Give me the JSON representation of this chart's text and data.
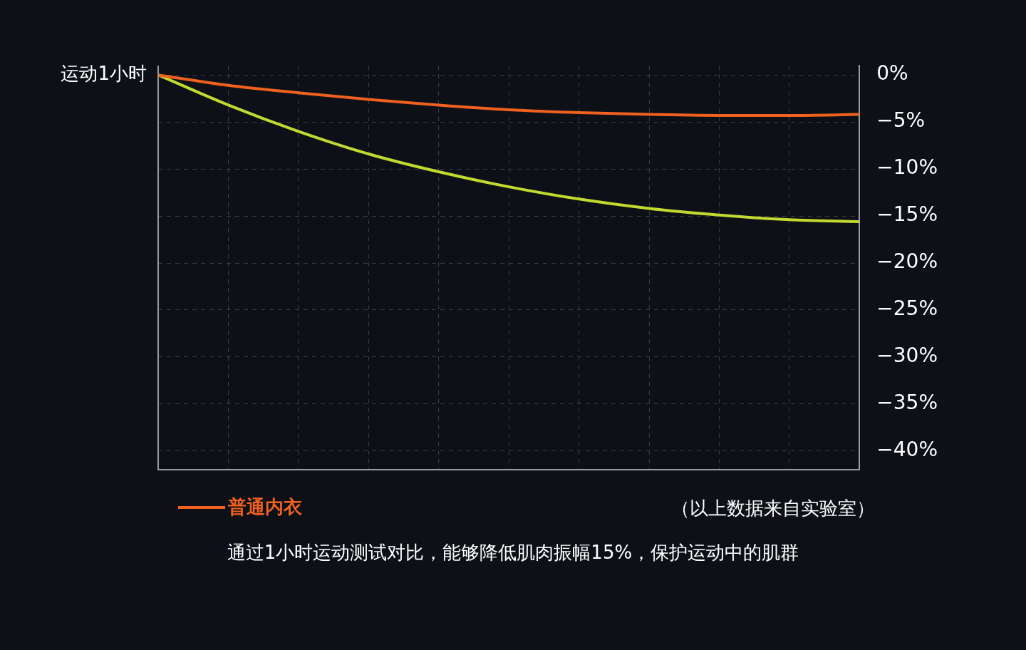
{
  "chart_data": {
    "type": "line",
    "categories": [
      null,
      null,
      null,
      null,
      null,
      null,
      null,
      null,
      null,
      null,
      null
    ],
    "series": [
      {
        "name": "普通内衣",
        "color": "#f0601e",
        "values": [
          0,
          -1.1,
          -1.9,
          -2.6,
          -3.2,
          -3.7,
          -4.0,
          -4.2,
          -4.3,
          -4.3,
          -4.2
        ]
      },
      {
        "color": "#c2d930",
        "values": [
          0,
          -3.2,
          -6.0,
          -8.4,
          -10.3,
          -11.9,
          -13.2,
          -14.2,
          -14.9,
          -15.4,
          -15.6
        ]
      }
    ],
    "ylim": [
      -42,
      1
    ],
    "yticks": [
      {
        "value": 0,
        "label": "0%"
      },
      {
        "value": -5,
        "label": "−5%"
      },
      {
        "value": -10,
        "label": "−10%"
      },
      {
        "value": -15,
        "label": "−15%"
      },
      {
        "value": -20,
        "label": "−20%"
      },
      {
        "value": -25,
        "label": "−25%"
      },
      {
        "value": -30,
        "label": "−30%"
      },
      {
        "value": -35,
        "label": "−35%"
      },
      {
        "value": -40,
        "label": "−40%"
      }
    ],
    "grid": true,
    "legend": "bottom left",
    "line_style": "solid",
    "annotations": [
      "运动1小时",
      "（以上数据来自实验室）",
      "通过1小时运动测试对比，能够降低肌肉振幅15%，保护运动中的肌群"
    ]
  }
}
